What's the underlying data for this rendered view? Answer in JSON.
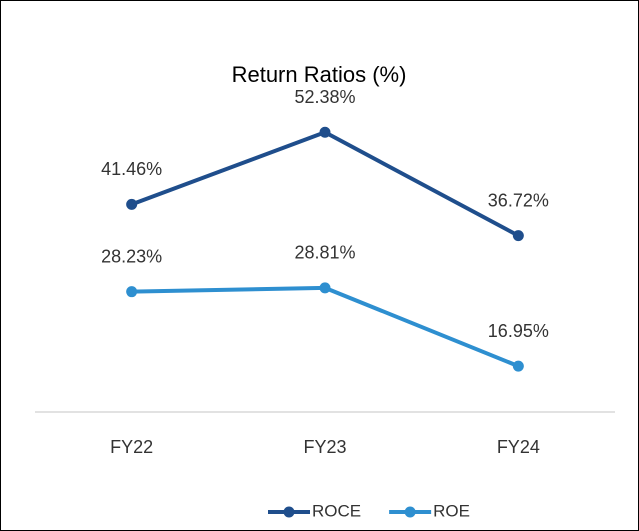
{
  "chart_data": {
    "type": "line",
    "title": "Return Ratios (%)",
    "categories": [
      "FY22",
      "FY23",
      "FY24"
    ],
    "series": [
      {
        "name": "ROCE",
        "color": "#1f4e8c",
        "values": [
          41.46,
          52.38,
          36.72
        ],
        "value_labels": [
          "41.46%",
          "52.38%",
          "36.72%"
        ]
      },
      {
        "name": "ROE",
        "color": "#2e8fd0",
        "values": [
          28.23,
          28.81,
          16.95
        ],
        "value_labels": [
          "28.23%",
          "28.81%",
          "16.95%"
        ]
      }
    ],
    "ylim": [
      10,
      60
    ],
    "legend": "bottom"
  }
}
